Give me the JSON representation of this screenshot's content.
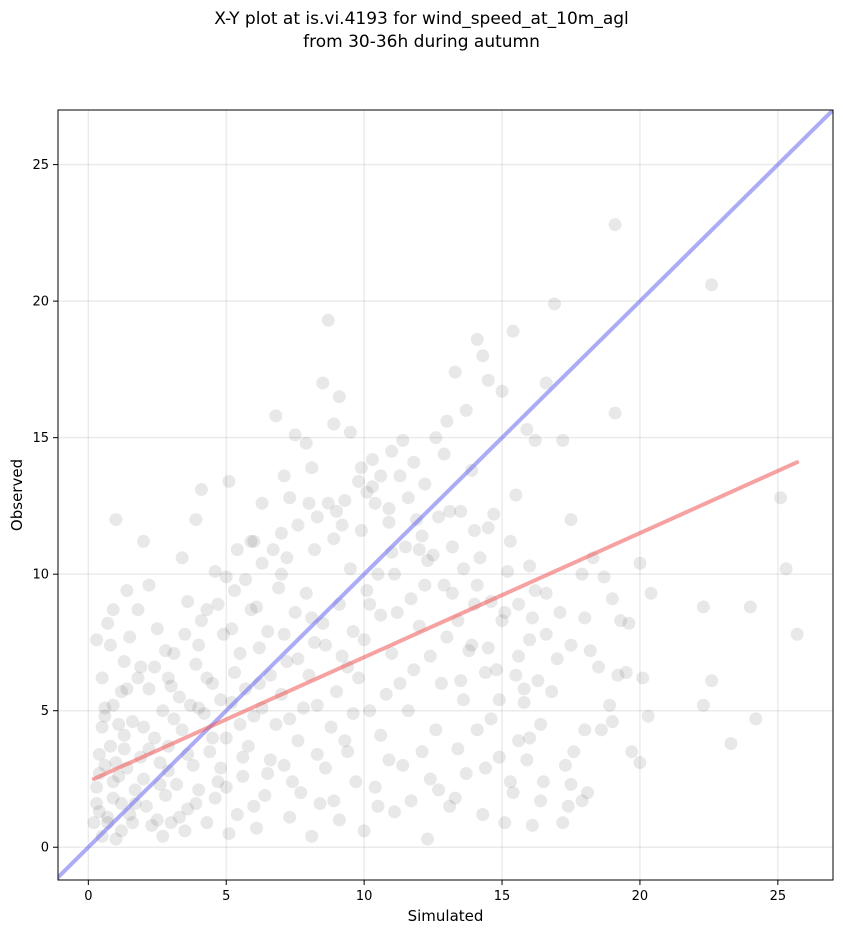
{
  "title": {
    "line1": "X-Y plot at is.vi.4193 for wind_speed_at_10m_agl",
    "line2": "from 30-36h during autumn"
  },
  "chart_data": {
    "type": "scatter",
    "xlabel": "Simulated",
    "ylabel": "Observed",
    "xlim": [
      -1.1,
      27.0
    ],
    "ylim": [
      -1.2,
      27.0
    ],
    "xticks": [
      0,
      5,
      10,
      15,
      20,
      25
    ],
    "yticks": [
      0,
      5,
      10,
      15,
      20,
      25
    ],
    "grid": true,
    "colors": {
      "points": "#000000",
      "identity_line": "#6666ee",
      "regression_line": "#ee5555"
    },
    "lines": [
      {
        "kind": "identity",
        "x": [
          -1.1,
          27.0
        ],
        "y": [
          -1.1,
          27.0
        ]
      },
      {
        "kind": "regression",
        "x": [
          0.2,
          25.7
        ],
        "y": [
          2.5,
          14.1
        ]
      }
    ],
    "points": [
      [
        1.0,
        12.0
      ],
      [
        2.0,
        11.2
      ],
      [
        2.2,
        9.6
      ],
      [
        1.4,
        9.4
      ],
      [
        0.9,
        8.7
      ],
      [
        1.8,
        8.7
      ],
      [
        0.7,
        8.2
      ],
      [
        0.3,
        7.6
      ],
      [
        0.8,
        7.4
      ],
      [
        1.5,
        7.7
      ],
      [
        2.5,
        8.0
      ],
      [
        1.3,
        6.8
      ],
      [
        1.9,
        6.6
      ],
      [
        0.5,
        6.2
      ],
      [
        1.2,
        5.7
      ],
      [
        0.6,
        5.1
      ],
      [
        2.8,
        7.2
      ],
      [
        3.4,
        10.6
      ],
      [
        3.9,
        12.0
      ],
      [
        4.1,
        13.1
      ],
      [
        3.6,
        9.0
      ],
      [
        4.3,
        8.7
      ],
      [
        4.6,
        10.1
      ],
      [
        5.1,
        13.4
      ],
      [
        5.4,
        10.9
      ],
      [
        5.9,
        11.2
      ],
      [
        6.3,
        12.6
      ],
      [
        6.8,
        15.8
      ],
      [
        7.1,
        13.6
      ],
      [
        7.5,
        15.1
      ],
      [
        7.9,
        14.8
      ],
      [
        7.3,
        12.8
      ],
      [
        8.1,
        13.9
      ],
      [
        8.5,
        17.0
      ],
      [
        8.7,
        19.3
      ],
      [
        9.1,
        16.5
      ],
      [
        8.9,
        15.5
      ],
      [
        9.5,
        15.2
      ],
      [
        9.9,
        13.9
      ],
      [
        10.3,
        14.2
      ],
      [
        10.6,
        13.6
      ],
      [
        11.0,
        14.5
      ],
      [
        11.4,
        14.9
      ],
      [
        11.8,
        14.1
      ],
      [
        12.2,
        13.3
      ],
      [
        12.6,
        15.0
      ],
      [
        13.0,
        15.6
      ],
      [
        13.3,
        17.4
      ],
      [
        13.7,
        16.0
      ],
      [
        14.1,
        18.6
      ],
      [
        14.3,
        18.0
      ],
      [
        14.5,
        17.1
      ],
      [
        15.0,
        16.7
      ],
      [
        15.4,
        18.9
      ],
      [
        15.9,
        15.3
      ],
      [
        16.2,
        14.9
      ],
      [
        16.6,
        17.0
      ],
      [
        16.9,
        19.9
      ],
      [
        17.2,
        14.9
      ],
      [
        17.5,
        12.0
      ],
      [
        17.9,
        10.0
      ],
      [
        18.3,
        10.6
      ],
      [
        18.7,
        9.9
      ],
      [
        19.1,
        15.9
      ],
      [
        19.1,
        22.8
      ],
      [
        19.3,
        8.3
      ],
      [
        19.6,
        8.2
      ],
      [
        20.0,
        10.4
      ],
      [
        20.4,
        9.3
      ],
      [
        19.0,
        9.1
      ],
      [
        18.0,
        8.4
      ],
      [
        17.5,
        7.4
      ],
      [
        18.2,
        7.2
      ],
      [
        18.5,
        6.6
      ],
      [
        19.2,
        6.3
      ],
      [
        19.5,
        6.4
      ],
      [
        20.1,
        6.2
      ],
      [
        20.3,
        4.8
      ],
      [
        19.0,
        4.6
      ],
      [
        18.6,
        4.3
      ],
      [
        18.0,
        4.3
      ],
      [
        17.6,
        3.5
      ],
      [
        17.3,
        3.0
      ],
      [
        17.5,
        2.3
      ],
      [
        17.4,
        1.5
      ],
      [
        17.2,
        0.9
      ],
      [
        16.4,
        1.7
      ],
      [
        16.1,
        0.8
      ],
      [
        16.5,
        2.4
      ],
      [
        16.0,
        4.0
      ],
      [
        15.8,
        5.3
      ],
      [
        16.3,
        6.1
      ],
      [
        15.5,
        6.3
      ],
      [
        22.3,
        8.8
      ],
      [
        22.6,
        20.6
      ],
      [
        22.6,
        6.1
      ],
      [
        22.3,
        5.2
      ],
      [
        23.3,
        3.8
      ],
      [
        24.0,
        8.8
      ],
      [
        24.2,
        4.7
      ],
      [
        25.1,
        12.8
      ],
      [
        25.3,
        10.2
      ],
      [
        25.7,
        7.8
      ],
      [
        19.7,
        3.5
      ],
      [
        20.0,
        3.1
      ],
      [
        18.9,
        5.2
      ],
      [
        18.1,
        2.0
      ],
      [
        17.9,
        1.7
      ],
      [
        0.5,
        0.4
      ],
      [
        0.7,
        0.9
      ],
      [
        0.4,
        1.3
      ],
      [
        0.9,
        1.8
      ],
      [
        1.2,
        0.6
      ],
      [
        1.5,
        1.2
      ],
      [
        1.7,
        2.1
      ],
      [
        1.1,
        2.6
      ],
      [
        0.6,
        3.0
      ],
      [
        0.8,
        3.7
      ],
      [
        1.3,
        4.1
      ],
      [
        1.9,
        3.3
      ],
      [
        2.1,
        1.5
      ],
      [
        2.3,
        0.8
      ],
      [
        2.0,
        2.5
      ],
      [
        2.6,
        3.1
      ],
      [
        2.4,
        4.0
      ],
      [
        1.6,
        4.6
      ],
      [
        0.5,
        4.4
      ],
      [
        0.9,
        5.2
      ],
      [
        2.8,
        1.9
      ],
      [
        3.0,
        0.9
      ],
      [
        3.2,
        2.3
      ],
      [
        2.9,
        3.7
      ],
      [
        3.4,
        4.3
      ],
      [
        3.6,
        1.4
      ],
      [
        3.8,
        3.0
      ],
      [
        4.0,
        2.1
      ],
      [
        4.2,
        4.9
      ],
      [
        3.3,
        5.5
      ],
      [
        2.7,
        5.0
      ],
      [
        2.2,
        5.8
      ],
      [
        1.8,
        6.2
      ],
      [
        4.4,
        3.5
      ],
      [
        4.6,
        1.8
      ],
      [
        4.8,
        2.9
      ],
      [
        5.0,
        4.0
      ],
      [
        5.2,
        5.3
      ],
      [
        4.5,
        6.0
      ],
      [
        3.9,
        6.7
      ],
      [
        3.1,
        7.1
      ],
      [
        5.4,
        1.2
      ],
      [
        5.6,
        2.6
      ],
      [
        5.8,
        3.7
      ],
      [
        6.0,
        4.8
      ],
      [
        6.2,
        6.0
      ],
      [
        5.5,
        7.1
      ],
      [
        4.9,
        7.8
      ],
      [
        4.1,
        8.3
      ],
      [
        6.4,
        1.9
      ],
      [
        6.6,
        3.2
      ],
      [
        6.8,
        4.5
      ],
      [
        7.0,
        5.6
      ],
      [
        7.2,
        6.8
      ],
      [
        6.5,
        7.9
      ],
      [
        5.9,
        8.7
      ],
      [
        5.3,
        9.4
      ],
      [
        7.4,
        2.4
      ],
      [
        7.6,
        3.9
      ],
      [
        7.8,
        5.1
      ],
      [
        8.0,
        6.3
      ],
      [
        8.2,
        7.5
      ],
      [
        7.5,
        8.6
      ],
      [
        6.9,
        9.5
      ],
      [
        6.3,
        10.4
      ],
      [
        8.4,
        1.6
      ],
      [
        8.6,
        2.9
      ],
      [
        8.8,
        4.4
      ],
      [
        9.0,
        5.7
      ],
      [
        9.2,
        7.0
      ],
      [
        8.5,
        8.2
      ],
      [
        7.9,
        9.3
      ],
      [
        7.2,
        10.6
      ],
      [
        9.4,
        3.5
      ],
      [
        9.6,
        4.9
      ],
      [
        9.8,
        6.2
      ],
      [
        10.0,
        7.6
      ],
      [
        10.2,
        8.9
      ],
      [
        9.5,
        10.2
      ],
      [
        8.9,
        11.3
      ],
      [
        8.3,
        12.1
      ],
      [
        10.4,
        2.2
      ],
      [
        10.6,
        4.1
      ],
      [
        10.8,
        5.6
      ],
      [
        11.0,
        7.1
      ],
      [
        11.2,
        8.6
      ],
      [
        10.5,
        10.0
      ],
      [
        9.9,
        11.6
      ],
      [
        9.3,
        12.7
      ],
      [
        11.4,
        3.0
      ],
      [
        11.6,
        5.0
      ],
      [
        11.8,
        6.5
      ],
      [
        12.0,
        8.1
      ],
      [
        12.2,
        9.6
      ],
      [
        11.5,
        11.0
      ],
      [
        10.9,
        12.4
      ],
      [
        10.3,
        13.2
      ],
      [
        12.4,
        2.5
      ],
      [
        12.6,
        4.3
      ],
      [
        12.8,
        6.0
      ],
      [
        13.0,
        7.7
      ],
      [
        13.2,
        9.3
      ],
      [
        12.5,
        10.7
      ],
      [
        11.9,
        12.0
      ],
      [
        13.4,
        3.6
      ],
      [
        13.6,
        5.4
      ],
      [
        13.8,
        7.2
      ],
      [
        14.0,
        8.9
      ],
      [
        14.2,
        10.6
      ],
      [
        13.5,
        12.3
      ],
      [
        14.4,
        2.9
      ],
      [
        14.6,
        4.7
      ],
      [
        14.8,
        6.5
      ],
      [
        15.0,
        8.3
      ],
      [
        15.2,
        10.1
      ],
      [
        14.5,
        11.7
      ],
      [
        15.4,
        2.0
      ],
      [
        15.6,
        3.9
      ],
      [
        15.8,
        5.8
      ],
      [
        16.0,
        7.6
      ],
      [
        16.2,
        9.4
      ],
      [
        15.5,
        12.9
      ],
      [
        13.9,
        13.8
      ],
      [
        12.9,
        14.4
      ],
      [
        11.3,
        13.6
      ],
      [
        0.3,
        2.2
      ],
      [
        0.4,
        3.4
      ],
      [
        0.6,
        4.8
      ],
      [
        1.0,
        3.1
      ],
      [
        1.4,
        2.9
      ],
      [
        1.6,
        0.9
      ],
      [
        2.5,
        1.0
      ],
      [
        2.7,
        0.4
      ],
      [
        3.5,
        0.6
      ],
      [
        4.3,
        0.9
      ],
      [
        5.1,
        0.5
      ],
      [
        6.1,
        0.7
      ],
      [
        7.3,
        1.1
      ],
      [
        8.1,
        0.4
      ],
      [
        9.1,
        1.0
      ],
      [
        10.0,
        0.6
      ],
      [
        11.1,
        1.3
      ],
      [
        12.3,
        0.3
      ],
      [
        13.1,
        1.5
      ],
      [
        14.3,
        1.2
      ],
      [
        15.1,
        0.9
      ],
      [
        1.1,
        4.5
      ],
      [
        1.4,
        5.8
      ],
      [
        2.0,
        4.4
      ],
      [
        2.4,
        6.6
      ],
      [
        2.9,
        6.2
      ],
      [
        3.5,
        7.8
      ],
      [
        4.0,
        7.4
      ],
      [
        4.7,
        8.9
      ],
      [
        5.2,
        8.0
      ],
      [
        5.7,
        9.8
      ],
      [
        6.1,
        8.8
      ],
      [
        6.7,
        10.9
      ],
      [
        7.0,
        10.0
      ],
      [
        7.6,
        11.8
      ],
      [
        8.2,
        10.9
      ],
      [
        8.7,
        12.6
      ],
      [
        9.2,
        11.8
      ],
      [
        9.8,
        13.4
      ],
      [
        10.4,
        12.6
      ],
      [
        10.9,
        11.9
      ],
      [
        11.6,
        12.8
      ],
      [
        12.1,
        11.4
      ],
      [
        12.7,
        12.1
      ],
      [
        13.2,
        11.0
      ],
      [
        13.6,
        10.2
      ],
      [
        14.1,
        9.6
      ],
      [
        14.6,
        9.0
      ],
      [
        15.1,
        8.6
      ],
      [
        15.6,
        8.9
      ],
      [
        16.1,
        8.4
      ],
      [
        16.6,
        7.8
      ],
      [
        17.0,
        6.9
      ],
      [
        16.8,
        5.7
      ],
      [
        16.4,
        4.5
      ],
      [
        15.9,
        3.2
      ],
      [
        15.3,
        2.4
      ],
      [
        14.9,
        3.3
      ],
      [
        14.1,
        4.3
      ],
      [
        13.7,
        2.7
      ],
      [
        13.3,
        1.8
      ],
      [
        12.7,
        2.1
      ],
      [
        12.1,
        3.5
      ],
      [
        11.7,
        1.7
      ],
      [
        10.9,
        3.2
      ],
      [
        10.5,
        1.5
      ],
      [
        9.7,
        2.4
      ],
      [
        9.3,
        3.9
      ],
      [
        8.9,
        1.7
      ],
      [
        8.3,
        3.4
      ],
      [
        7.7,
        2.0
      ],
      [
        7.1,
        3.0
      ],
      [
        6.5,
        2.7
      ],
      [
        6.0,
        1.5
      ],
      [
        5.6,
        3.3
      ],
      [
        5.0,
        2.2
      ],
      [
        4.5,
        4.0
      ],
      [
        4.0,
        5.1
      ],
      [
        3.6,
        3.4
      ],
      [
        3.1,
        4.7
      ],
      [
        2.6,
        2.3
      ],
      [
        2.2,
        3.6
      ],
      [
        1.7,
        1.6
      ],
      [
        1.3,
        3.6
      ],
      [
        0.9,
        2.4
      ],
      [
        3.0,
        5.9
      ],
      [
        3.7,
        5.2
      ],
      [
        4.3,
        6.2
      ],
      [
        4.8,
        5.4
      ],
      [
        5.3,
        6.4
      ],
      [
        5.7,
        5.8
      ],
      [
        6.2,
        7.3
      ],
      [
        6.6,
        6.3
      ],
      [
        7.1,
        7.8
      ],
      [
        7.6,
        6.9
      ],
      [
        8.1,
        8.4
      ],
      [
        8.6,
        7.4
      ],
      [
        9.1,
        8.9
      ],
      [
        9.6,
        7.9
      ],
      [
        10.1,
        9.4
      ],
      [
        10.6,
        8.5
      ],
      [
        11.1,
        10.0
      ],
      [
        11.7,
        9.1
      ],
      [
        12.3,
        10.5
      ],
      [
        12.9,
        9.6
      ],
      [
        13.4,
        8.3
      ],
      [
        13.9,
        7.4
      ],
      [
        14.4,
        6.4
      ],
      [
        14.9,
        5.4
      ],
      [
        5.0,
        9.9
      ],
      [
        6.0,
        11.2
      ],
      [
        7.0,
        11.5
      ],
      [
        8.0,
        12.6
      ],
      [
        9.0,
        12.3
      ],
      [
        10.1,
        13.0
      ],
      [
        11.0,
        10.8
      ],
      [
        12.0,
        10.9
      ],
      [
        13.1,
        12.3
      ],
      [
        14.0,
        11.6
      ],
      [
        14.7,
        12.2
      ],
      [
        15.3,
        11.2
      ],
      [
        16.0,
        10.3
      ],
      [
        16.6,
        9.3
      ],
      [
        17.1,
        8.6
      ],
      [
        0.2,
        0.9
      ],
      [
        0.3,
        1.6
      ],
      [
        0.4,
        2.7
      ],
      [
        0.7,
        1.1
      ],
      [
        1.0,
        0.3
      ],
      [
        1.2,
        1.6
      ],
      [
        2.9,
        2.8
      ],
      [
        3.3,
        1.1
      ],
      [
        3.9,
        1.6
      ],
      [
        4.7,
        2.4
      ],
      [
        5.5,
        4.5
      ],
      [
        6.3,
        5.1
      ],
      [
        7.3,
        4.7
      ],
      [
        8.3,
        5.2
      ],
      [
        9.4,
        6.6
      ],
      [
        10.2,
        5.0
      ],
      [
        11.3,
        6.0
      ],
      [
        12.4,
        7.0
      ],
      [
        13.5,
        6.1
      ],
      [
        14.5,
        7.3
      ],
      [
        15.6,
        7.0
      ]
    ]
  }
}
